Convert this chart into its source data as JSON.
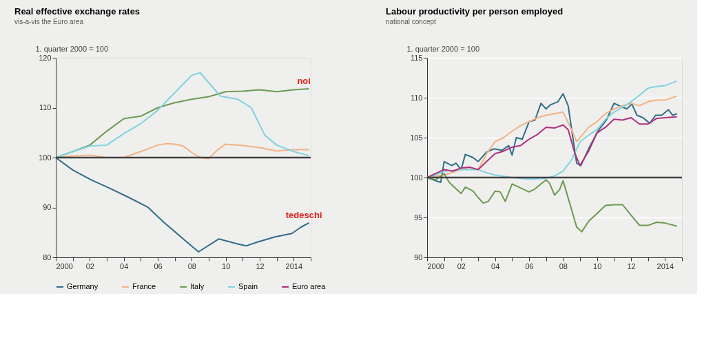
{
  "chart_data": [
    {
      "type": "line",
      "title": "Real effective exchange rates",
      "subtitle": "vis-a-vis the Euro area",
      "ylabel": "1. quarter 2000 = 100",
      "xlim": [
        2000,
        2015
      ],
      "ylim": [
        80,
        120
      ],
      "yticks": [
        80,
        90,
        100,
        110,
        120
      ],
      "xticks": [
        2000,
        {
          "value": 2001,
          "label": null
        },
        {
          "value": 2002,
          "label": "02"
        },
        {
          "value": 2003,
          "label": null
        },
        {
          "value": 2004,
          "label": "04"
        },
        {
          "value": 2005,
          "label": null
        },
        {
          "value": 2006,
          "label": "06"
        },
        {
          "value": 2007,
          "label": null
        },
        {
          "value": 2008,
          "label": "08"
        },
        {
          "value": 2009,
          "label": null
        },
        {
          "value": 2010,
          "label": "10"
        },
        {
          "value": 2011,
          "label": null
        },
        {
          "value": 2012,
          "label": "12"
        },
        {
          "value": 2013,
          "label": null
        },
        2014,
        {
          "value": 2015,
          "label": null
        }
      ],
      "grid": false,
      "legend": "bottom",
      "line_style": "solid",
      "marker": "none",
      "ref_lines": [
        {
          "axis": "y",
          "value": 100,
          "label": null,
          "color": "#404040"
        }
      ],
      "annotations": [
        {
          "text": "noi",
          "x": 2014.6,
          "y": 113.8
        },
        {
          "text": "tedeschi",
          "x": 2014.6,
          "y": 86.9
        }
      ],
      "series": [
        {
          "name": "Germany",
          "color": "#2f6d8a",
          "x": [
            2000,
            2001,
            2002.1,
            2003.2,
            2004.3,
            2005.4,
            2006.4,
            2007.5,
            2008.4,
            2009.6,
            2010.7,
            2011.2,
            2011.8,
            2012.9,
            2013.9,
            2014.4,
            2014.9
          ],
          "values": [
            100,
            97.5,
            95.5,
            93.8,
            92,
            90.1,
            86.9,
            83.7,
            81.1,
            83.7,
            82.7,
            82.3,
            83,
            84.1,
            84.8,
            86,
            86.9
          ]
        },
        {
          "name": "France",
          "color": "#f3b283",
          "x": [
            2000,
            2001,
            2002,
            2003,
            2004,
            2005,
            2006,
            2006.5,
            2007,
            2007.5,
            2008,
            2008.5,
            2009,
            2009.5,
            2010,
            2011,
            2012,
            2013,
            2014,
            2014.9
          ],
          "values": [
            100,
            100.3,
            100.5,
            100,
            100,
            101.2,
            102.5,
            102.8,
            102.7,
            102.3,
            101,
            100,
            99.8,
            101.5,
            102.7,
            102.4,
            102,
            101.3,
            101.6,
            101.6
          ]
        },
        {
          "name": "Italy",
          "color": "#6c9a50",
          "x": [
            2000,
            2001,
            2002,
            2003,
            2004,
            2005,
            2006,
            2007,
            2008,
            2009,
            2010,
            2011,
            2012,
            2013,
            2014,
            2014.9
          ],
          "values": [
            100,
            101.2,
            102.5,
            105.3,
            107.8,
            108.3,
            110,
            111,
            111.7,
            112.2,
            113.2,
            113.3,
            113.6,
            113.2,
            113.6,
            113.8
          ]
        },
        {
          "name": "Spain",
          "color": "#7fd3e0",
          "x": [
            2000,
            2001,
            2002,
            2003,
            2004,
            2005,
            2006,
            2007,
            2008,
            2008.5,
            2009,
            2009.7,
            2010.7,
            2011.5,
            2012.3,
            2013,
            2014,
            2014.9
          ],
          "values": [
            100,
            101.2,
            102.3,
            102.5,
            104.8,
            106.8,
            109.5,
            113,
            116.5,
            117,
            115,
            112.3,
            111.7,
            110,
            104.5,
            102.5,
            101.2,
            100.4
          ]
        }
      ]
    },
    {
      "type": "line",
      "title": "Labour productivity per person employed",
      "subtitle": "national concept",
      "ylabel": "1. quarter 2000 = 100",
      "xlim": [
        2000,
        2015
      ],
      "ylim": [
        90,
        115
      ],
      "yticks": [
        90,
        95,
        100,
        105,
        110,
        115
      ],
      "xticks": [
        2000,
        {
          "value": 2001,
          "label": null
        },
        {
          "value": 2002,
          "label": "02"
        },
        {
          "value": 2003,
          "label": null
        },
        {
          "value": 2004,
          "label": "04"
        },
        {
          "value": 2005,
          "label": null
        },
        {
          "value": 2006,
          "label": "06"
        },
        {
          "value": 2007,
          "label": null
        },
        {
          "value": 2008,
          "label": "08"
        },
        {
          "value": 2009,
          "label": null
        },
        {
          "value": 2010,
          "label": "10"
        },
        {
          "value": 2011,
          "label": null
        },
        {
          "value": 2012,
          "label": "12"
        },
        {
          "value": 2013,
          "label": null
        },
        2014,
        {
          "value": 2015,
          "label": null
        }
      ],
      "grid": "y",
      "legend": "bottom",
      "line_style": "solid",
      "marker": "none",
      "ref_lines": [
        {
          "axis": "y",
          "value": 100,
          "label": null,
          "color": "#404040"
        }
      ],
      "series": [
        {
          "name": "Germany",
          "color": "#2f6d8a",
          "x": [
            2000,
            2000.5,
            2000.8,
            2001,
            2001.45,
            2001.7,
            2002,
            2002.25,
            2002.7,
            2003,
            2003.5,
            2003.95,
            2004.4,
            2004.8,
            2005,
            2005.25,
            2005.6,
            2006,
            2006.35,
            2006.7,
            2007,
            2007.25,
            2007.7,
            2008,
            2008.3,
            2008.8,
            2009.05,
            2009.55,
            2010.05,
            2010.55,
            2011,
            2011.4,
            2011.75,
            2012.05,
            2012.35,
            2012.7,
            2013.1,
            2013.45,
            2013.8,
            2014.2,
            2014.45,
            2014.7
          ],
          "values": [
            100,
            99.6,
            99.4,
            102,
            101.5,
            101.8,
            101,
            102.9,
            102.5,
            102,
            103.2,
            103.6,
            103.4,
            104,
            102.8,
            105,
            104.8,
            107,
            107.2,
            109.3,
            108.6,
            109.1,
            109.5,
            110.5,
            109,
            101.8,
            101.5,
            103.8,
            105.8,
            107.2,
            109.3,
            108.9,
            108.6,
            109.2,
            107.8,
            107.5,
            106.8,
            107.8,
            107.8,
            108.5,
            107.8,
            108
          ]
        },
        {
          "name": "France",
          "color": "#f3b283",
          "x": [
            2000,
            2001,
            2002,
            2002.5,
            2003,
            2003.5,
            2004,
            2004.5,
            2005,
            2005.5,
            2006,
            2006.5,
            2007,
            2007.5,
            2008,
            2008.5,
            2008.8,
            2009.2,
            2009.5,
            2010,
            2010.5,
            2011,
            2011.5,
            2012,
            2012.5,
            2013,
            2013.5,
            2014,
            2014.7
          ],
          "values": [
            100,
            100.3,
            101,
            101.3,
            101,
            103,
            104.5,
            105,
            105.8,
            106.5,
            107,
            107.5,
            107.8,
            108,
            108.2,
            106,
            104.5,
            105.5,
            106.3,
            107,
            108,
            108.6,
            109,
            109.3,
            109,
            109.5,
            109.7,
            109.7,
            110.2
          ]
        },
        {
          "name": "Italy",
          "color": "#6c9a50",
          "x": [
            2000,
            2000.5,
            2001,
            2001.3,
            2001.6,
            2002,
            2002.25,
            2002.7,
            2003,
            2003.3,
            2003.6,
            2004,
            2004.3,
            2004.6,
            2005,
            2005.5,
            2006,
            2006.3,
            2006.7,
            2007,
            2007.2,
            2007.5,
            2007.8,
            2008,
            2008.5,
            2008.8,
            2009.1,
            2009.5,
            2010,
            2010.5,
            2011,
            2011.5,
            2012,
            2012.5,
            2013,
            2013.5,
            2014,
            2014.7
          ],
          "values": [
            100,
            99.7,
            100.5,
            99.4,
            98.8,
            98,
            98.8,
            98.3,
            97.5,
            96.8,
            97,
            98.3,
            98.2,
            97,
            99.2,
            98.7,
            98.2,
            98.5,
            99.2,
            99.7,
            99.3,
            97.8,
            98.5,
            99.6,
            96,
            93.8,
            93.2,
            94.5,
            95.5,
            96.5,
            96.6,
            96.6,
            95.3,
            94,
            94,
            94.4,
            94.3,
            93.9
          ]
        },
        {
          "name": "Spain",
          "color": "#7fd3e0",
          "x": [
            2000,
            2000.5,
            2001,
            2002,
            2002.5,
            2003,
            2003.5,
            2004,
            2005,
            2006,
            2007,
            2007.5,
            2008,
            2008.5,
            2009,
            2009.5,
            2010,
            2010.5,
            2011,
            2011.5,
            2012,
            2012.5,
            2013,
            2013.5,
            2014,
            2014.7
          ],
          "values": [
            100,
            100.3,
            100.8,
            101,
            101,
            101,
            100.6,
            100.3,
            100,
            99.8,
            99.9,
            100.2,
            100.8,
            102.2,
            104.5,
            105.3,
            106,
            107.3,
            108.2,
            108.8,
            109.5,
            110.3,
            111.2,
            111.4,
            111.5,
            112.1
          ]
        },
        {
          "name": "Euro area",
          "color": "#b0307a",
          "x": [
            2000,
            2001,
            2001.5,
            2002,
            2002.5,
            2003,
            2003.5,
            2004,
            2004.5,
            2005,
            2005.5,
            2006,
            2006.5,
            2007,
            2007.5,
            2008,
            2008.3,
            2008.7,
            2009,
            2009.5,
            2010,
            2010.5,
            2011,
            2011.5,
            2012,
            2012.5,
            2013,
            2013.5,
            2014,
            2014.7
          ],
          "values": [
            100,
            101,
            100.8,
            101.2,
            101.3,
            101,
            102,
            103,
            103.3,
            103.8,
            104,
            104.8,
            105.4,
            106.3,
            106.2,
            106.6,
            106,
            103,
            101.5,
            103.3,
            105.6,
            106.3,
            107.3,
            107.2,
            107.5,
            106.7,
            106.7,
            107.4,
            107.5,
            107.6
          ]
        }
      ]
    }
  ]
}
